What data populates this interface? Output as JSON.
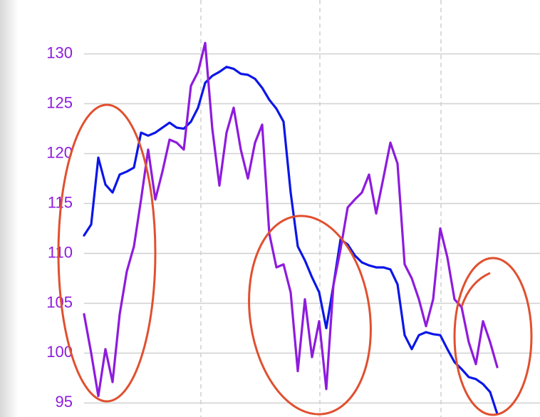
{
  "chart_data": {
    "type": "line",
    "series": [
      {
        "name": "Blue",
        "color": "#0b16e8",
        "values": [
          111.8,
          112.9,
          119.6,
          116.9,
          116.1,
          117.9,
          118.2,
          118.6,
          122.1,
          121.8,
          122.1,
          122.6,
          123.1,
          122.6,
          122.5,
          123.2,
          124.6,
          127.1,
          127.8,
          128.2,
          128.7,
          128.5,
          128.0,
          127.9,
          127.5,
          126.6,
          125.4,
          124.5,
          123.2,
          116.1,
          110.7,
          109.3,
          107.6,
          106.1,
          102.5,
          106.8,
          111.4,
          110.9,
          109.8,
          109.1,
          108.8,
          108.6,
          108.6,
          108.4,
          106.9,
          101.8,
          100.4,
          101.8,
          102.1,
          101.9,
          101.8,
          100.4,
          99.1,
          98.4,
          97.6,
          97.4,
          96.9,
          96.1,
          93.9
        ]
      },
      {
        "name": "Purple",
        "color": "#8e1bdd",
        "values": [
          103.9,
          100.0,
          95.7,
          100.4,
          97.1,
          103.9,
          108.2,
          110.7,
          115.4,
          120.4,
          115.4,
          118.2,
          121.4,
          121.1,
          120.4,
          126.8,
          128.2,
          131.1,
          122.5,
          116.8,
          122.1,
          124.6,
          120.4,
          117.5,
          121.1,
          122.9,
          112.0,
          108.6,
          108.9,
          106.1,
          98.2,
          105.4,
          99.6,
          103.2,
          96.4,
          106.8,
          110.4,
          114.6,
          115.4,
          116.1,
          117.9,
          114.0,
          117.5,
          121.1,
          119.0,
          108.9,
          107.5,
          105.4,
          102.7,
          105.4,
          112.5,
          109.6,
          105.4,
          104.6,
          101.1,
          98.9,
          103.2,
          101.1,
          98.6
        ]
      }
    ],
    "ylim": [
      93.6,
      135.4
    ],
    "yticks": [
      95,
      100,
      105,
      110,
      115,
      120,
      125,
      130
    ],
    "grid": true,
    "tick_color": "#8e1bdd"
  }
}
